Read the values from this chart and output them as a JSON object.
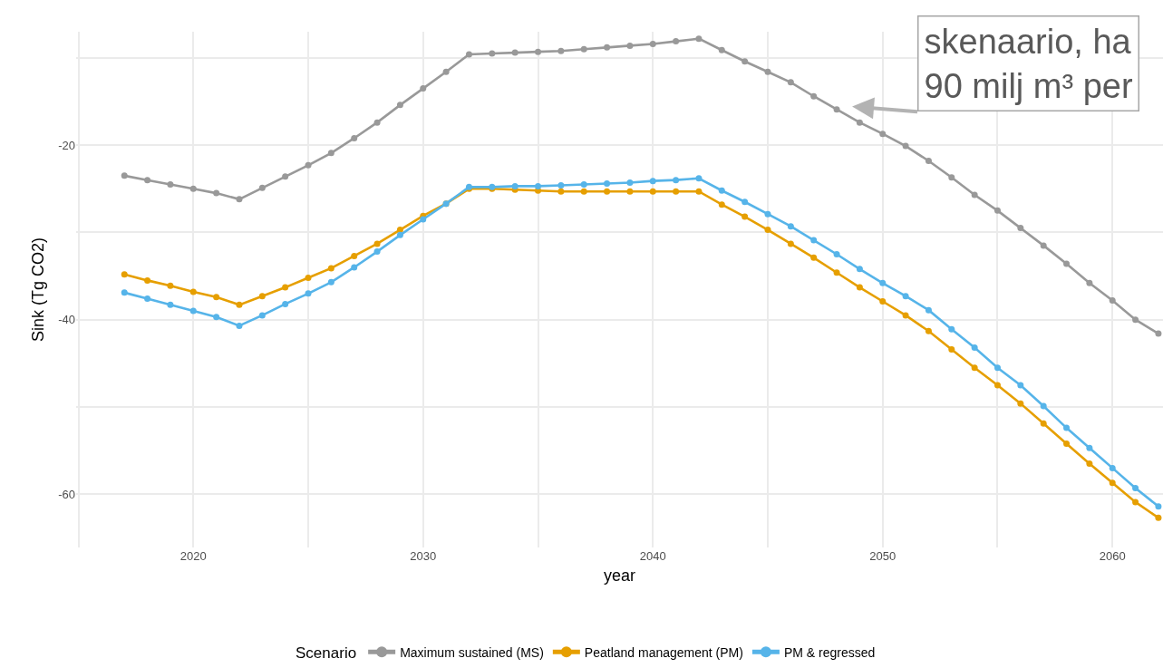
{
  "chart_data": {
    "type": "line",
    "xlabel": "year",
    "ylabel": "Sink (Tg CO2)",
    "legend_title": "Scenario",
    "x": [
      2017,
      2018,
      2019,
      2020,
      2021,
      2022,
      2023,
      2024,
      2025,
      2026,
      2027,
      2028,
      2029,
      2030,
      2031,
      2032,
      2033,
      2034,
      2035,
      2036,
      2037,
      2038,
      2039,
      2040,
      2041,
      2042,
      2043,
      2044,
      2045,
      2046,
      2047,
      2048,
      2049,
      2050,
      2051,
      2052,
      2053,
      2054,
      2055,
      2056,
      2057,
      2058,
      2059,
      2060,
      2061,
      2062
    ],
    "series": [
      {
        "name": "Maximum sustained (MS)",
        "color": "#999999",
        "values": [
          -23.5,
          -24.0,
          -24.5,
          -25.0,
          -25.5,
          -26.2,
          -24.9,
          -23.6,
          -22.3,
          -20.9,
          -19.2,
          -17.4,
          -15.4,
          -13.5,
          -11.6,
          -9.6,
          -9.5,
          -9.4,
          -9.3,
          -9.2,
          -9.0,
          -8.8,
          -8.6,
          -8.4,
          -8.1,
          -7.8,
          -9.1,
          -10.4,
          -11.6,
          -12.8,
          -14.4,
          -15.9,
          -17.4,
          -18.7,
          -20.1,
          -21.8,
          -23.7,
          -25.7,
          -27.5,
          -29.5,
          -31.5,
          -33.6,
          -35.8,
          -37.8,
          -40.0,
          -41.6
        ]
      },
      {
        "name": "Peatland management (PM)",
        "color": "#E69F00",
        "values": [
          -34.8,
          -35.5,
          -36.1,
          -36.8,
          -37.4,
          -38.3,
          -37.3,
          -36.3,
          -35.2,
          -34.1,
          -32.7,
          -31.3,
          -29.7,
          -28.1,
          -26.7,
          -25.0,
          -25.0,
          -25.1,
          -25.2,
          -25.3,
          -25.3,
          -25.3,
          -25.3,
          -25.3,
          -25.3,
          -25.3,
          -26.8,
          -28.2,
          -29.7,
          -31.3,
          -32.9,
          -34.6,
          -36.3,
          -37.9,
          -39.5,
          -41.3,
          -43.4,
          -45.5,
          -47.5,
          -49.6,
          -51.9,
          -54.2,
          -56.5,
          -58.7,
          -60.9,
          -62.7
        ]
      },
      {
        "name": "PM & regressed",
        "color": "#56B4E9",
        "values": [
          -36.9,
          -37.6,
          -38.3,
          -39.0,
          -39.7,
          -40.7,
          -39.5,
          -38.2,
          -37.0,
          -35.7,
          -34.0,
          -32.2,
          -30.3,
          -28.5,
          -26.7,
          -24.8,
          -24.8,
          -24.7,
          -24.7,
          -24.6,
          -24.5,
          -24.4,
          -24.3,
          -24.1,
          -24.0,
          -23.8,
          -25.2,
          -26.5,
          -27.9,
          -29.3,
          -30.9,
          -32.5,
          -34.2,
          -35.8,
          -37.3,
          -38.9,
          -41.1,
          -43.2,
          -45.5,
          -47.5,
          -49.9,
          -52.4,
          -54.7,
          -57.0,
          -59.3,
          -61.4
        ]
      }
    ],
    "xlim": [
      2014.9,
      2062.2
    ],
    "ylim": [
      -66.1,
      -7.0
    ],
    "xticks": [
      {
        "value": 2015,
        "label": null
      },
      2020,
      {
        "value": 2025,
        "label": null
      },
      2030,
      {
        "value": 2035,
        "label": null
      },
      2040,
      {
        "value": 2045,
        "label": null
      },
      2050,
      {
        "value": 2055,
        "label": null
      },
      2060
    ],
    "yticks": [
      -60,
      {
        "value": -50,
        "label": null
      },
      -40,
      {
        "value": -30,
        "label": null
      },
      -20,
      {
        "value": -10,
        "label": null
      }
    ],
    "grid": true,
    "legend": "bottom",
    "marker": "circle",
    "line_style": "solid",
    "annotations": [
      "skenaario, ha\n90 milj m³ per"
    ]
  }
}
